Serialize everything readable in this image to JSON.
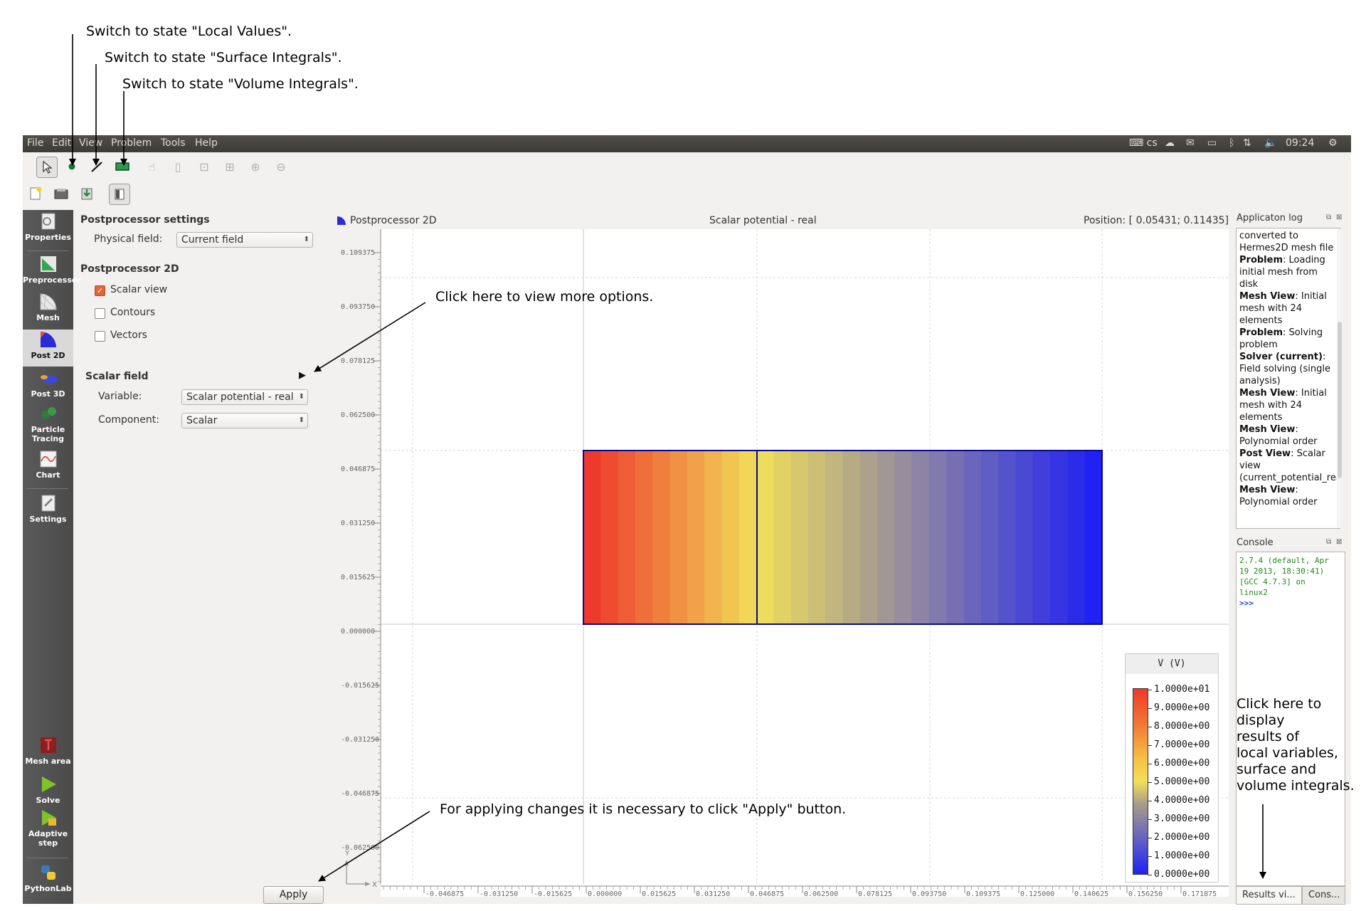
{
  "annotations": {
    "local_values": "Switch to state \"Local Values\".",
    "surface_integrals": "Switch to state \"Surface Integrals\".",
    "volume_integrals": "Switch to state \"Volume Integrals\".",
    "more_options": "Click here to view more options.",
    "apply_changes": "For applying changes it is necessary to click \"Apply\" button.",
    "display_results": [
      "Click here to",
      "display",
      "results of",
      "local variables,",
      "surface and",
      "volume integrals."
    ]
  },
  "menubar": {
    "items": [
      "File",
      "Edit",
      "View",
      "Problem",
      "Tools",
      "Help"
    ],
    "keyboard": "cs",
    "clock": "09:24"
  },
  "sidebar": {
    "items": [
      {
        "label": "Properties",
        "icon": "properties-icon"
      },
      {
        "label": "Preprocessor",
        "icon": "preprocessor-icon"
      },
      {
        "label": "Mesh",
        "icon": "mesh-icon"
      },
      {
        "label": "Post 2D",
        "icon": "post2d-icon",
        "active": true
      },
      {
        "label": "Post 3D",
        "icon": "post3d-icon"
      },
      {
        "label": "Particle Tracing",
        "icon": "particle-tracing-icon"
      },
      {
        "label": "Chart",
        "icon": "chart-icon"
      },
      {
        "label": "Settings",
        "icon": "settings-icon"
      },
      {
        "label": "Mesh area",
        "icon": "mesh-area-icon"
      },
      {
        "label": "Solve",
        "icon": "solve-icon"
      },
      {
        "label": "Adaptive step",
        "icon": "adaptive-step-icon"
      },
      {
        "label": "PythonLab",
        "icon": "pythonlab-icon"
      }
    ]
  },
  "settings": {
    "title": "Postprocessor settings",
    "physical_field_label": "Physical field:",
    "physical_field_value": "Current field",
    "post2d_title": "Postprocessor 2D",
    "scalar_view": "Scalar view",
    "contours": "Contours",
    "vectors": "Vectors",
    "scalar_field_title": "Scalar field",
    "variable_label": "Variable:",
    "variable_value": "Scalar potential - real",
    "component_label": "Component:",
    "component_value": "Scalar",
    "apply": "Apply"
  },
  "view": {
    "title": "Postprocessor 2D",
    "center_title": "Scalar potential - real",
    "position": "Position: [ 0.05431; 0.11435]",
    "y_ticks": [
      "0.109375",
      "0.093750",
      "0.078125",
      "0.062500",
      "0.046875",
      "0.031250",
      "0.015625",
      "0.000000",
      "-0.015625",
      "-0.031250",
      "-0.046875",
      "-0.062500"
    ],
    "x_ticks": [
      "-0.046875",
      "-0.031250",
      "-0.015625",
      "0.000000",
      "0.015625",
      "0.031250",
      "0.046875",
      "0.062500",
      "0.078125",
      "0.093750",
      "0.109375",
      "0.125000",
      "0.140625",
      "0.156250",
      "0.171875"
    ],
    "axis_y": "Y",
    "axis_x": "X",
    "legend_title": "V (V)",
    "legend_values": [
      "1.0000e+01",
      "9.0000e+00",
      "8.0000e+00",
      "7.0000e+00",
      "6.0000e+00",
      "5.0000e+00",
      "4.0000e+00",
      "3.0000e+00",
      "2.0000e+00",
      "1.0000e+00",
      "0.0000e+00"
    ]
  },
  "right_panel": {
    "log_title": "Applicaton log",
    "log_entries": [
      {
        "b": "",
        "t": "converted to Hermes2D mesh file"
      },
      {
        "b": "Problem",
        "t": ": Loading initial mesh from disk"
      },
      {
        "b": "Mesh View",
        "t": ": Initial mesh with 24 elements"
      },
      {
        "b": "Problem",
        "t": ": Solving problem"
      },
      {
        "b": "Solver (current)",
        "t": ": Field solving (single analysis)"
      },
      {
        "b": "Mesh View",
        "t": ": Initial mesh with 24 elements"
      },
      {
        "b": "Mesh View",
        "t": ": Polynomial order"
      },
      {
        "b": "Post View",
        "t": ": Scalar view (current_potential_real)"
      },
      {
        "b": "Mesh View",
        "t": ": Polynomial order"
      }
    ],
    "console_title": "Console",
    "console_lines": [
      "2.7.4 (default, Apr",
      "19 2013, 18:30:41)",
      "[GCC 4.7.3] on",
      "linux2",
      ">>>"
    ],
    "tab_results": "Results vi...",
    "tab_console": "Cons..."
  },
  "colors": {
    "scalar_max": "#ee3a2c",
    "scalar_mid": "#f2e05a",
    "scalar_min": "#1f22f2",
    "mesh_edge": "#0a0a8a"
  }
}
